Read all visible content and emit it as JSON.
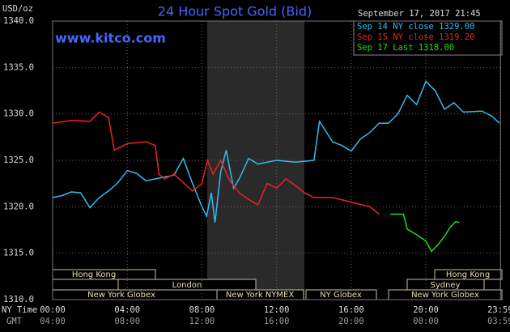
{
  "chart_data": {
    "type": "line",
    "title": "24 Hour Spot Gold (Bid)",
    "unit_label": "USD/oz",
    "website": "www.kitco.com",
    "timestamp": "September 17, 2017 21:45",
    "x_label": "NY Time",
    "x2_label": "GMT",
    "xlim": [
      0,
      24
    ],
    "ylim": [
      1310,
      1340
    ],
    "yticks": [
      {
        "value": 1310,
        "label": "1310.0"
      },
      {
        "value": 1315,
        "label": "1315.0"
      },
      {
        "value": 1320,
        "label": "1320.0"
      },
      {
        "value": 1325,
        "label": "1325.0"
      },
      {
        "value": 1330,
        "label": "1330.0"
      },
      {
        "value": 1335,
        "label": "1335.0"
      },
      {
        "value": 1340,
        "label": "1340.0"
      }
    ],
    "xticks": [
      {
        "value": 0,
        "label": "00:00"
      },
      {
        "value": 4,
        "label": "04:00"
      },
      {
        "value": 8,
        "label": "08:00"
      },
      {
        "value": 12,
        "label": "12:00"
      },
      {
        "value": 16,
        "label": "16:00"
      },
      {
        "value": 20,
        "label": "20:00"
      },
      {
        "value": 23.983,
        "label": "23:59"
      }
    ],
    "x2ticks": [
      {
        "value": 0,
        "label": "04:00"
      },
      {
        "value": 4,
        "label": "08:00"
      },
      {
        "value": 8,
        "label": "12:00"
      },
      {
        "value": 12,
        "label": "16:00"
      },
      {
        "value": 16,
        "label": "20:00"
      },
      {
        "value": 20,
        "label": "00:00"
      },
      {
        "value": 23.983,
        "label": "03:59"
      }
    ],
    "grid": true,
    "sessions": [
      "Hong Kong",
      "London",
      "New York Globex",
      "New York NYMEX",
      "NY Globex",
      "Hong Kong",
      "Sydney",
      "New York Globex"
    ],
    "series": [
      {
        "name": "Sep 14 NY close 1329.00",
        "color": "#33bbee",
        "x": [
          0,
          0.5,
          1,
          1.5,
          2,
          2.5,
          3,
          3.5,
          4,
          4.5,
          5,
          5.5,
          6,
          6.5,
          7,
          7.5,
          8,
          8.25,
          8.5,
          8.7,
          9,
          9.3,
          9.7,
          10,
          10.5,
          11,
          12,
          13,
          14,
          14.3,
          15,
          15.5,
          16,
          16.5,
          17,
          17.5,
          18,
          18.5,
          19,
          19.5,
          20,
          20.5,
          21,
          21.5,
          22,
          23,
          23.5,
          23.95
        ],
        "values": [
          1321.0,
          1321.2,
          1321.6,
          1321.5,
          1319.9,
          1321.0,
          1321.7,
          1322.6,
          1323.9,
          1323.6,
          1322.8,
          1323.0,
          1323.2,
          1323.4,
          1325.2,
          1322.5,
          1320.0,
          1319.0,
          1321.5,
          1318.3,
          1323.7,
          1326.1,
          1322.0,
          1323.0,
          1325.2,
          1324.6,
          1325.0,
          1324.8,
          1325.0,
          1329.2,
          1327.0,
          1326.6,
          1326.0,
          1327.3,
          1328.0,
          1329.0,
          1329.0,
          1330.0,
          1332.0,
          1331.0,
          1333.5,
          1332.5,
          1330.5,
          1331.2,
          1330.2,
          1330.3,
          1329.8,
          1329.0
        ]
      },
      {
        "name": "Sep 15 NY close 1319.20",
        "color": "#ee2222",
        "x": [
          0,
          1,
          2,
          2.5,
          3,
          3.3,
          4,
          5,
          5.5,
          5.7,
          6,
          6.5,
          7,
          7.5,
          8,
          8.3,
          8.6,
          9,
          9.5,
          10,
          10.5,
          11,
          11.5,
          12,
          12.5,
          13,
          13.5,
          14,
          15,
          16,
          17,
          17.5
        ],
        "values": [
          1329.0,
          1329.3,
          1329.2,
          1330.2,
          1329.6,
          1326.1,
          1326.8,
          1327.0,
          1326.6,
          1323.5,
          1323.0,
          1323.5,
          1322.6,
          1321.7,
          1322.5,
          1325.0,
          1323.5,
          1325.0,
          1322.8,
          1321.5,
          1320.8,
          1320.2,
          1322.5,
          1322.0,
          1323.0,
          1322.3,
          1321.5,
          1321.0,
          1321.0,
          1320.5,
          1320.0,
          1319.2
        ]
      },
      {
        "name": "Sep 17 Last 1318.00",
        "color": "#22dd22",
        "x": [
          18.1,
          18.8,
          19.0,
          19.5,
          20.0,
          20.3,
          20.6,
          21.0,
          21.3,
          21.6,
          21.8
        ],
        "values": [
          1319.2,
          1319.2,
          1317.6,
          1317.0,
          1316.3,
          1315.2,
          1315.8,
          1316.8,
          1317.8,
          1318.4,
          1318.3
        ]
      }
    ]
  }
}
